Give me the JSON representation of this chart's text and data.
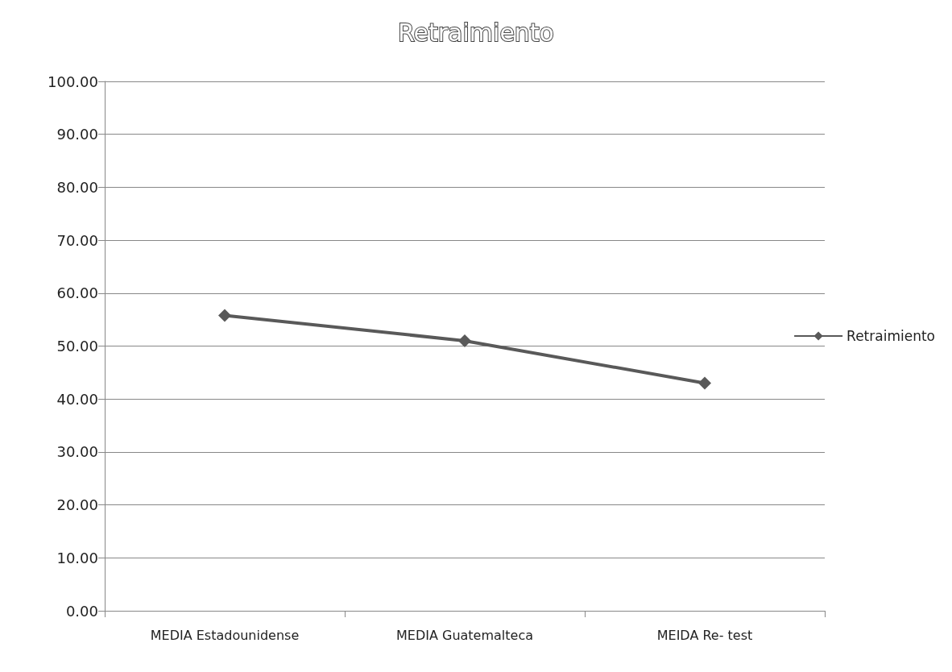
{
  "chart_data": {
    "type": "line",
    "title": "Retraimiento",
    "categories": [
      "MEDIA Estadounidense",
      "MEDIA Guatemalteca",
      "MEIDA Re- test"
    ],
    "series": [
      {
        "name": "Retraimiento",
        "color": "#595959",
        "values": [
          55.8,
          51.0,
          43.0
        ]
      }
    ],
    "ylim": [
      0,
      100
    ],
    "yticks": [
      {
        "value": 0,
        "label": "0.00"
      },
      {
        "value": 10,
        "label": "10.00"
      },
      {
        "value": 20,
        "label": "20.00"
      },
      {
        "value": 30,
        "label": "30.00"
      },
      {
        "value": 40,
        "label": "40.00"
      },
      {
        "value": 50,
        "label": "50.00"
      },
      {
        "value": 60,
        "label": "60.00"
      },
      {
        "value": 70,
        "label": "70.00"
      },
      {
        "value": 80,
        "label": "80.00"
      },
      {
        "value": 90,
        "label": "90.00"
      },
      {
        "value": 100,
        "label": "100.00"
      }
    ],
    "grid": "y",
    "legend": "right",
    "marker": "diamond"
  }
}
